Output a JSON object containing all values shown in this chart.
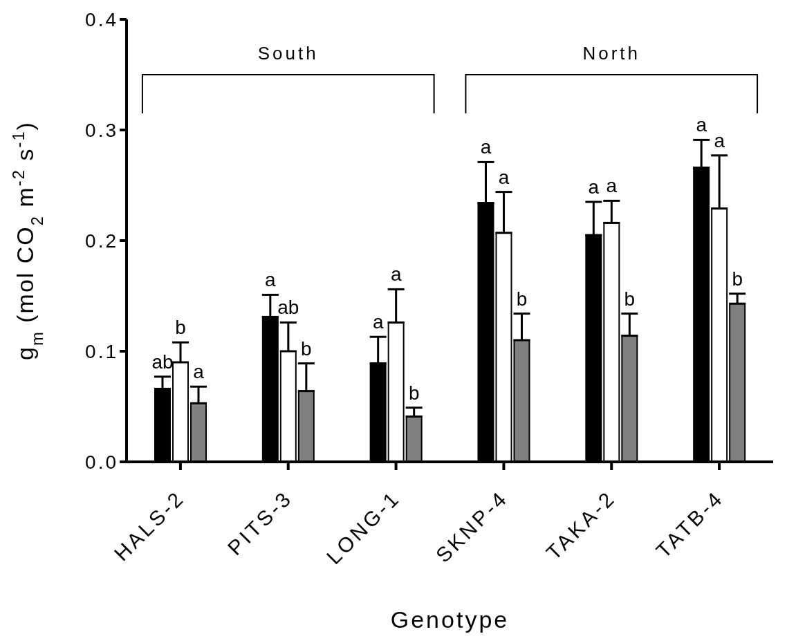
{
  "chart_data": {
    "type": "bar",
    "xlabel": "Genotype",
    "ylabel": "g$_{m}$ (mol CO$_{2}$ m$^{-2}$ s$^{-1}$)",
    "categories": [
      "HALS-2",
      "PITS-3",
      "LONG-1",
      "SKNP-4",
      "TAKA-2",
      "TATB-4"
    ],
    "series": [
      {
        "color": "#000000",
        "values": [
          0.066,
          0.131,
          0.089,
          0.234,
          0.205,
          0.266
        ],
        "errors": [
          [
            0.066,
            0.077
          ],
          [
            0.131,
            0.151
          ],
          [
            0.089,
            0.113
          ],
          [
            0.234,
            0.271
          ],
          [
            0.205,
            0.235
          ],
          [
            0.266,
            0.291
          ]
        ],
        "value_labels": [
          "ab",
          "a",
          "a",
          "a",
          "a",
          "a"
        ]
      },
      {
        "color": "#ffffff",
        "values": [
          0.09,
          0.1,
          0.126,
          0.207,
          0.216,
          0.229
        ],
        "errors": [
          [
            0.09,
            0.108
          ],
          [
            0.1,
            0.126
          ],
          [
            0.126,
            0.156
          ],
          [
            0.207,
            0.244
          ],
          [
            0.216,
            0.236
          ],
          [
            0.229,
            0.277
          ]
        ],
        "value_labels": [
          "b",
          "ab",
          "a",
          "a",
          "a",
          "a"
        ]
      },
      {
        "color": "#808080",
        "values": [
          0.053,
          0.064,
          0.041,
          0.11,
          0.114,
          0.143
        ],
        "errors": [
          [
            0.053,
            0.068
          ],
          [
            0.064,
            0.089
          ],
          [
            0.041,
            0.049
          ],
          [
            0.11,
            0.134
          ],
          [
            0.114,
            0.134
          ],
          [
            0.143,
            0.152
          ]
        ],
        "value_labels": [
          "a",
          "b",
          "b",
          "b",
          "b",
          "b"
        ]
      }
    ],
    "ylim": [
      0,
      0.4
    ],
    "yticks": [
      {
        "value": 0,
        "label": "0.0"
      },
      0.1,
      0.2,
      0.3,
      0.4
    ],
    "annotations": [
      "South",
      "North"
    ]
  }
}
